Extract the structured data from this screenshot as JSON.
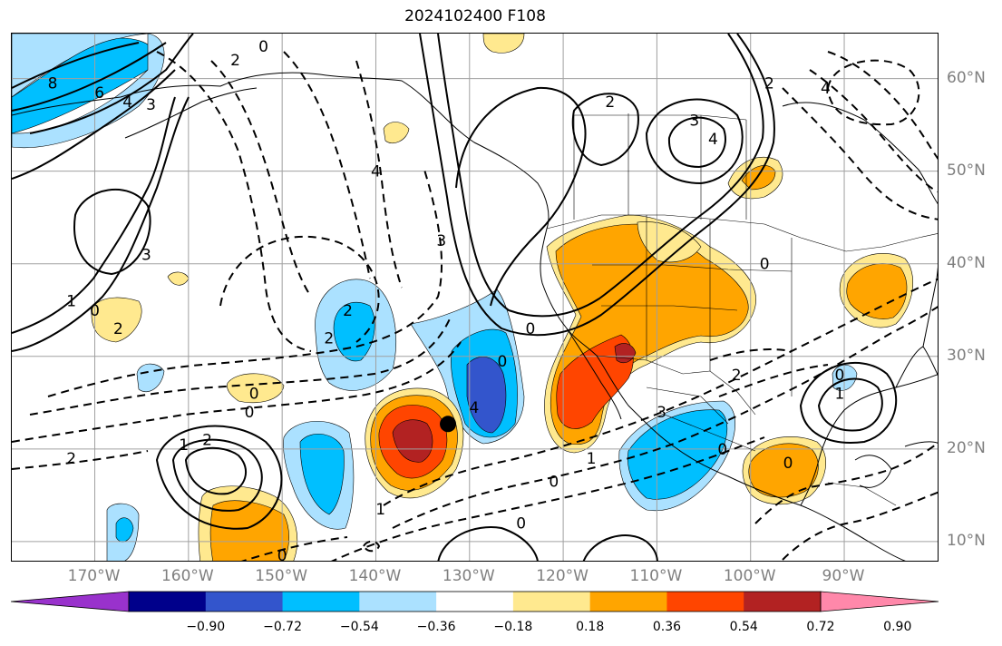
{
  "title": "2024102400 F108",
  "lon_labels": [
    {
      "text": "170°W",
      "lon": -170
    },
    {
      "text": "160°W",
      "lon": -160
    },
    {
      "text": "150°W",
      "lon": -150
    },
    {
      "text": "140°W",
      "lon": -140
    },
    {
      "text": "130°W",
      "lon": -130
    },
    {
      "text": "120°W",
      "lon": -120
    },
    {
      "text": "110°W",
      "lon": -110
    },
    {
      "text": "100°W",
      "lon": -100
    },
    {
      "text": "90°W",
      "lon": -90
    }
  ],
  "lat_labels": [
    {
      "text": "60°N",
      "lat": 60
    },
    {
      "text": "50°N",
      "lat": 50
    },
    {
      "text": "40°N",
      "lat": 40
    },
    {
      "text": "30°N",
      "lat": 30
    },
    {
      "text": "20°N",
      "lat": 20
    },
    {
      "text": "10°N",
      "lat": 10
    }
  ],
  "colorbar": {
    "colors": [
      "#9932cc",
      "#00008b",
      "#3355cc",
      "#00bfff",
      "#abe1ff",
      "#ffffff",
      "#ffe98f",
      "#ffa500",
      "#ff4500",
      "#b22222",
      "#ff88aa"
    ],
    "tick_labels": [
      "−0.90",
      "−0.72",
      "−0.54",
      "−0.36",
      "−0.18",
      "0.18",
      "0.36",
      "0.54",
      "0.72",
      "0.90"
    ]
  },
  "contour_labels": [
    {
      "text": "8",
      "lon": -174.5,
      "lat": 59.5
    },
    {
      "text": "6",
      "lon": -169.5,
      "lat": 58.5
    },
    {
      "text": "4",
      "lon": -166.5,
      "lat": 57.5
    },
    {
      "text": "3",
      "lon": -164,
      "lat": 57.2
    },
    {
      "text": "2",
      "lon": -155,
      "lat": 62
    },
    {
      "text": "0",
      "lon": -152,
      "lat": 63.5
    },
    {
      "text": "3",
      "lon": -164.5,
      "lat": 41
    },
    {
      "text": "1",
      "lon": -172.5,
      "lat": 36
    },
    {
      "text": "0",
      "lon": -170,
      "lat": 35
    },
    {
      "text": "2",
      "lon": -167.5,
      "lat": 33
    },
    {
      "text": "2",
      "lon": -143,
      "lat": 35
    },
    {
      "text": "2",
      "lon": -145,
      "lat": 32
    },
    {
      "text": "0",
      "lon": -153,
      "lat": 26
    },
    {
      "text": "0",
      "lon": -153.5,
      "lat": 24
    },
    {
      "text": "1",
      "lon": -160.5,
      "lat": 20.5
    },
    {
      "text": "2",
      "lon": -158,
      "lat": 21
    },
    {
      "text": "2",
      "lon": -172.5,
      "lat": 19
    },
    {
      "text": "4",
      "lon": -140,
      "lat": 50
    },
    {
      "text": "3",
      "lon": -133,
      "lat": 42.5
    },
    {
      "text": "2",
      "lon": -115,
      "lat": 57.5
    },
    {
      "text": "3",
      "lon": -106,
      "lat": 55.5
    },
    {
      "text": "4",
      "lon": -104,
      "lat": 53.5
    },
    {
      "text": "0",
      "lon": -123.5,
      "lat": 33
    },
    {
      "text": "0",
      "lon": -126.5,
      "lat": 29.5
    },
    {
      "text": "4",
      "lon": -129.5,
      "lat": 24.5
    },
    {
      "text": "3",
      "lon": -109.5,
      "lat": 24
    },
    {
      "text": "2",
      "lon": -101.5,
      "lat": 28
    },
    {
      "text": "0",
      "lon": -98.5,
      "lat": 40
    },
    {
      "text": "0",
      "lon": -103,
      "lat": 20
    },
    {
      "text": "0",
      "lon": -96,
      "lat": 18.5
    },
    {
      "text": "1",
      "lon": -117,
      "lat": 19
    },
    {
      "text": "0",
      "lon": -121,
      "lat": 16.5
    },
    {
      "text": "1",
      "lon": -139.5,
      "lat": 13.5
    },
    {
      "text": "0",
      "lon": -124.5,
      "lat": 12
    },
    {
      "text": "0",
      "lon": -150,
      "lat": 8.5
    },
    {
      "text": "0",
      "lon": -90.5,
      "lat": 28
    },
    {
      "text": "1",
      "lon": -90.5,
      "lat": 26
    },
    {
      "text": "4",
      "lon": -92,
      "lat": 59
    },
    {
      "text": "2",
      "lon": -98,
      "lat": 59.5
    }
  ],
  "marker": {
    "lon": -132.3,
    "lat": 22.7
  }
}
